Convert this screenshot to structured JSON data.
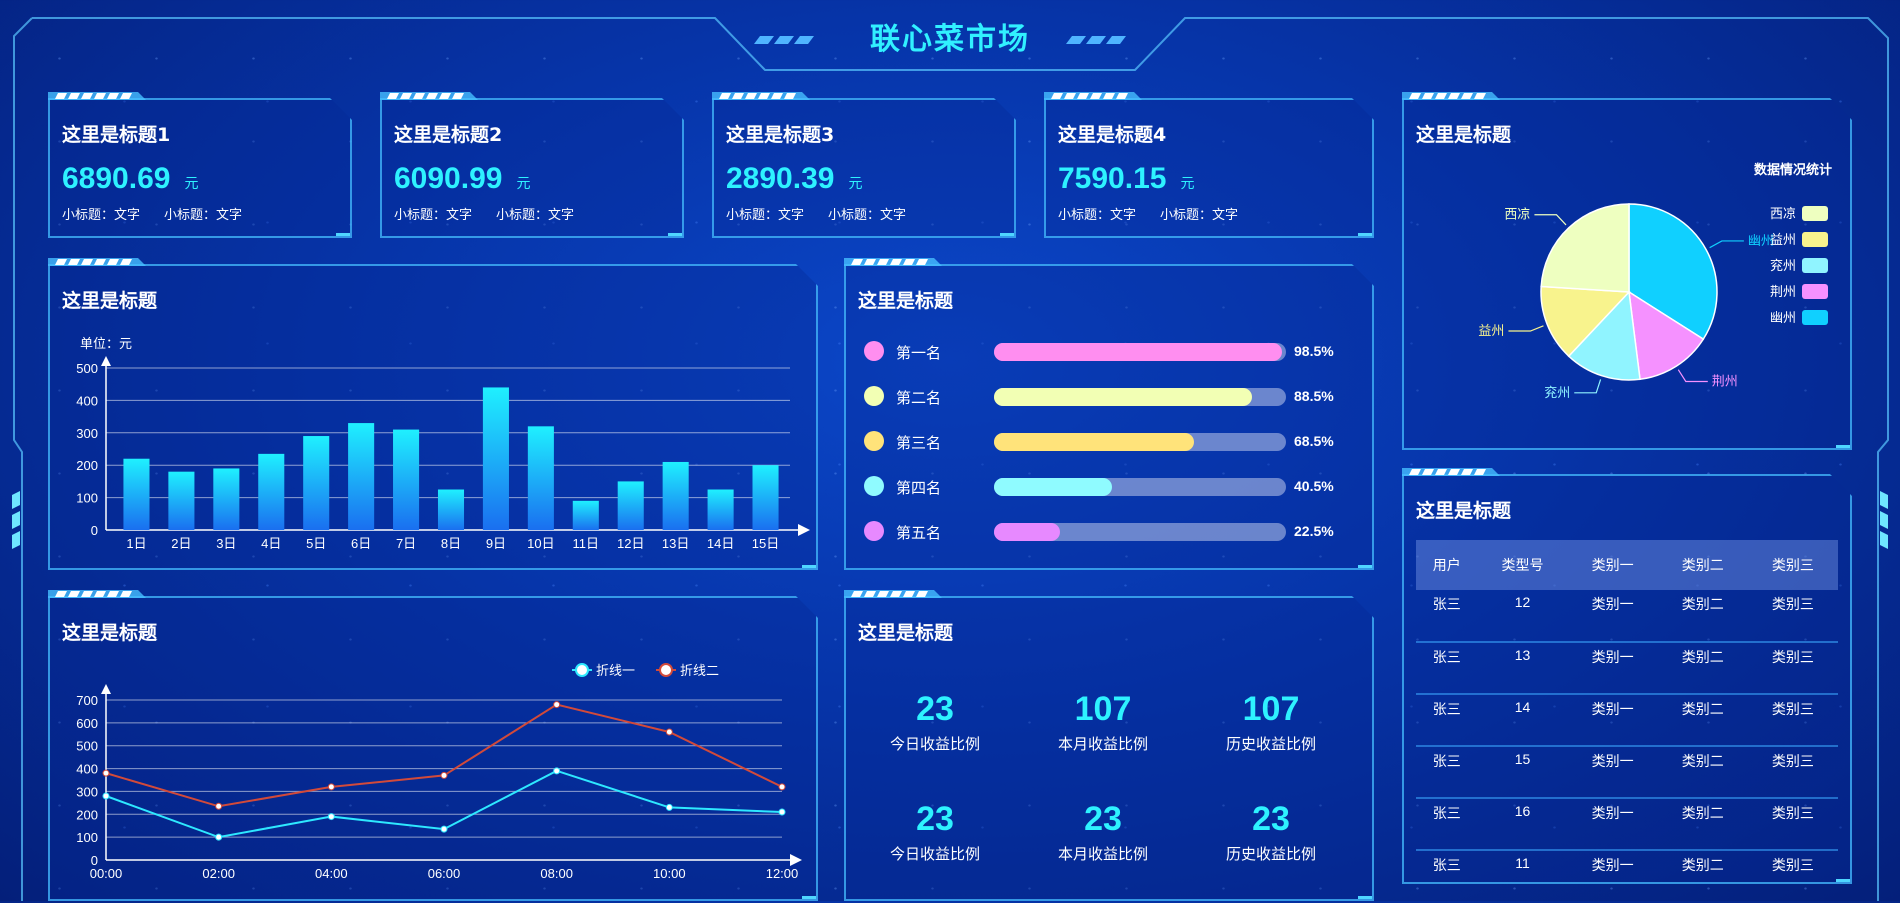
{
  "app_title": "联心菜市场",
  "kpis": [
    {
      "title": "这里是标题1",
      "value": "6890.69",
      "unit": "元",
      "sub1": "小标题：文字",
      "sub2": "小标题：文字"
    },
    {
      "title": "这里是标题2",
      "value": "6090.99",
      "unit": "元",
      "sub1": "小标题：文字",
      "sub2": "小标题：文字"
    },
    {
      "title": "这里是标题3",
      "value": "2890.39",
      "unit": "元",
      "sub1": "小标题：文字",
      "sub2": "小标题：文字"
    },
    {
      "title": "这里是标题4",
      "value": "7590.15",
      "unit": "元",
      "sub1": "小标题：文字",
      "sub2": "小标题：文字"
    }
  ],
  "bar_panel": {
    "title": "这里是标题",
    "chart_data": {
      "type": "bar",
      "unit_label": "单位：元",
      "categories": [
        "1日",
        "2日",
        "3日",
        "4日",
        "5日",
        "6日",
        "7日",
        "8日",
        "9日",
        "10日",
        "11日",
        "12日",
        "13日",
        "14日",
        "15日"
      ],
      "values": [
        220,
        180,
        190,
        235,
        290,
        330,
        310,
        125,
        440,
        320,
        90,
        150,
        210,
        125,
        200
      ],
      "y_ticks": [
        0,
        100,
        200,
        300,
        400,
        500
      ],
      "ylim": [
        0,
        500
      ],
      "bar_color_top": "#1ff0ff",
      "bar_color_bottom": "#1a6ff0"
    }
  },
  "rank_panel": {
    "title": "这里是标题",
    "items": [
      {
        "name": "第一名",
        "pct": "98.5%",
        "value": 98.5,
        "color": "#ff8ef0"
      },
      {
        "name": "第二名",
        "pct": "88.5%",
        "value": 88.5,
        "color": "#f2ffb4"
      },
      {
        "name": "第三名",
        "pct": "68.5%",
        "value": 68.5,
        "color": "#ffe37a"
      },
      {
        "name": "第四名",
        "pct": "40.5%",
        "value": 40.5,
        "color": "#8ffbff"
      },
      {
        "name": "第五名",
        "pct": "22.5%",
        "value": 22.5,
        "color": "#e789ff"
      }
    ]
  },
  "pie_panel": {
    "title": "这里是标题",
    "chart_data": {
      "type": "pie",
      "legend_title": "数据情况统计",
      "slices": [
        {
          "name": "幽州",
          "value": 34,
          "color": "#10d0ff"
        },
        {
          "name": "荆州",
          "value": 14,
          "color": "#f591ff"
        },
        {
          "name": "兖州",
          "value": 14,
          "color": "#90f4ff"
        },
        {
          "name": "益州",
          "value": 14,
          "color": "#f8f38d"
        },
        {
          "name": "西凉",
          "value": 24,
          "color": "#eeffc0"
        }
      ],
      "legend_order": [
        "西凉",
        "益州",
        "兖州",
        "荆州",
        "幽州"
      ]
    }
  },
  "line_panel": {
    "title": "这里是标题",
    "chart_data": {
      "type": "line",
      "x": [
        "00:00",
        "02:00",
        "04:00",
        "06:00",
        "08:00",
        "10:00",
        "12:00"
      ],
      "y_ticks": [
        0,
        100,
        200,
        300,
        400,
        500,
        600,
        700
      ],
      "ylim": [
        0,
        700
      ],
      "series": [
        {
          "name": "折线一",
          "values": [
            280,
            100,
            190,
            135,
            390,
            230,
            210
          ],
          "color": "#2ee8ff"
        },
        {
          "name": "折线二",
          "values": [
            380,
            235,
            320,
            370,
            680,
            560,
            320
          ],
          "color": "#d24a3a"
        }
      ]
    }
  },
  "stats_panel": {
    "title": "这里是标题",
    "items": [
      {
        "value": "23",
        "label": "今日收益比例"
      },
      {
        "value": "107",
        "label": "本月收益比例"
      },
      {
        "value": "107",
        "label": "历史收益比例"
      },
      {
        "value": "23",
        "label": "今日收益比例"
      },
      {
        "value": "23",
        "label": "本月收益比例"
      },
      {
        "value": "23",
        "label": "历史收益比例"
      }
    ]
  },
  "table_panel": {
    "title": "这里是标题",
    "columns": [
      "用户",
      "类型号",
      "类别一",
      "类别二",
      "类别三"
    ],
    "rows": [
      [
        "张三",
        "12",
        "类别一",
        "类别二",
        "类别三"
      ],
      [
        "张三",
        "13",
        "类别一",
        "类别二",
        "类别三"
      ],
      [
        "张三",
        "14",
        "类别一",
        "类别二",
        "类别三"
      ],
      [
        "张三",
        "15",
        "类别一",
        "类别二",
        "类别三"
      ],
      [
        "张三",
        "16",
        "类别一",
        "类别二",
        "类别三"
      ],
      [
        "张三",
        "11",
        "类别一",
        "类别二",
        "类别三"
      ]
    ]
  }
}
